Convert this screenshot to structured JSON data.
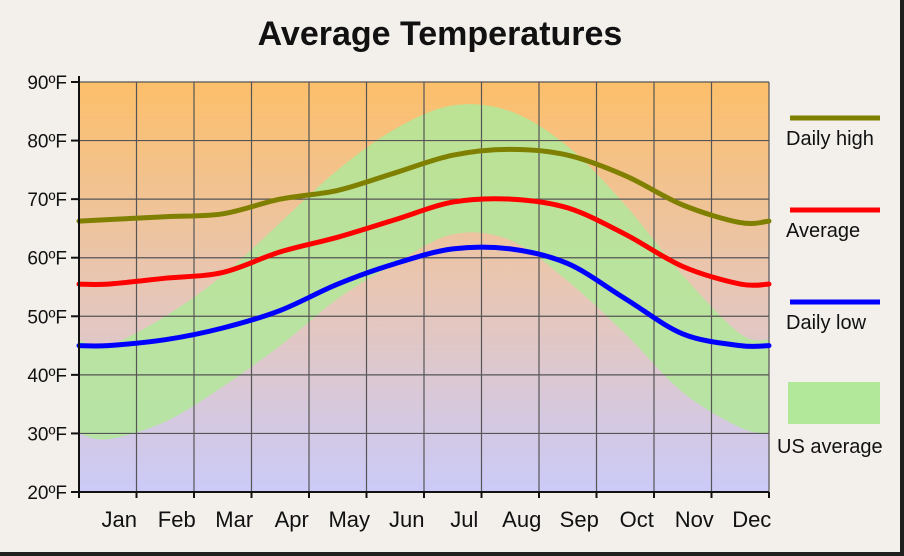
{
  "chart_data": {
    "type": "line",
    "title": "Average Temperatures",
    "ylim": [
      20,
      90
    ],
    "y_ticks": [
      "20ºF",
      "30ºF",
      "40ºF",
      "50ºF",
      "60ºF",
      "70ºF",
      "80ºF",
      "90ºF"
    ],
    "categories": [
      "Jan",
      "Feb",
      "Mar",
      "Apr",
      "May",
      "Jun",
      "Jul",
      "Aug",
      "Sep",
      "Oct",
      "Nov",
      "Dec"
    ],
    "grid": true,
    "legend_position": "right",
    "series": [
      {
        "name": "Daily high",
        "color": "#808000",
        "values": [
          66.5,
          67,
          67.5,
          70,
          71.5,
          74.5,
          77.5,
          78.5,
          77.5,
          74,
          69,
          66
        ]
      },
      {
        "name": "Average",
        "color": "#ff0000",
        "values": [
          55.5,
          56.5,
          57.5,
          61,
          63.5,
          66.5,
          69.5,
          70,
          68.5,
          64,
          58.5,
          55.5
        ]
      },
      {
        "name": "Daily low",
        "color": "#0000ff",
        "values": [
          45,
          46,
          48,
          51,
          55.5,
          59,
          61.5,
          61.5,
          59,
          53,
          47,
          45
        ]
      }
    ],
    "us_average_band": {
      "name": "US average",
      "color": "#b2e89a",
      "upper": [
        45,
        50,
        57,
        66,
        75,
        82,
        86,
        85,
        79,
        69,
        57,
        47
      ],
      "lower": [
        29,
        32,
        38,
        45,
        53,
        59,
        64,
        63,
        56,
        47,
        37,
        31
      ]
    }
  }
}
